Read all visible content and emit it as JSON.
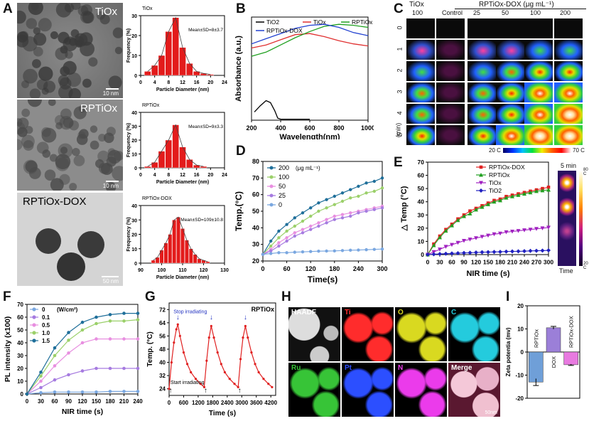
{
  "panels": {
    "A": "A",
    "B": "B",
    "C": "C",
    "D": "D",
    "E": "E",
    "F": "F",
    "G": "G",
    "H": "H",
    "I": "I"
  },
  "tem": [
    {
      "label": "TiOx",
      "scale": "10 nm"
    },
    {
      "label": "RPTiOx",
      "scale": "10 nm"
    },
    {
      "label": "RPTiOx-DOX",
      "scale": "50 nm"
    }
  ],
  "chart_data": [
    {
      "id": "A1",
      "type": "bar",
      "title": "TiOx",
      "annotation": "Mean±SD=8±3.7",
      "xlabel": "Particle Diameter (nm)",
      "ylabel": "Frequency (%)",
      "xticks": [
        "0",
        "4",
        "8",
        "12",
        "16",
        "20",
        "24"
      ],
      "xlim": [
        0,
        24
      ],
      "yticks": [
        "0",
        "10",
        "20",
        "30"
      ],
      "ylim": [
        0,
        30
      ],
      "x": [
        2,
        4,
        6,
        8,
        10,
        12,
        14,
        16,
        18,
        20
      ],
      "values": [
        2,
        5,
        10,
        22,
        29,
        14,
        6,
        2,
        1,
        0.5
      ]
    },
    {
      "id": "A2",
      "type": "bar",
      "title": "RPTiOx",
      "annotation": "Mean±SD=9±3.3",
      "xlabel": "Particle Diameter (nm)",
      "ylabel": "Frequency (%)",
      "xticks": [
        "0",
        "4",
        "8",
        "12",
        "16",
        "20",
        "24"
      ],
      "xlim": [
        0,
        24
      ],
      "yticks": [
        "0",
        "10",
        "20",
        "30",
        "40"
      ],
      "ylim": [
        0,
        40
      ],
      "x": [
        2,
        4,
        6,
        8,
        10,
        12,
        14,
        16,
        18
      ],
      "values": [
        1,
        4,
        12,
        20,
        31,
        15,
        6,
        2,
        1
      ]
    },
    {
      "id": "A3",
      "type": "bar",
      "title": "RPTiOx-DOX",
      "annotation": "Mean±SD=109±10.8",
      "xlabel": "Particle Diameter (nm)",
      "ylabel": "Frequency (%)",
      "xticks": [
        "90",
        "100",
        "110",
        "120",
        "130"
      ],
      "xlim": [
        90,
        130
      ],
      "yticks": [
        "0",
        "10",
        "20",
        "30",
        "40"
      ],
      "ylim": [
        0,
        40
      ],
      "x": [
        96,
        98,
        100,
        102,
        104,
        106,
        108,
        110,
        112,
        114,
        116,
        118,
        120,
        122
      ],
      "values": [
        2,
        4,
        9,
        14,
        20,
        30,
        32,
        24,
        16,
        10,
        6,
        3,
        2,
        1
      ]
    },
    {
      "id": "B",
      "type": "line",
      "xlabel": "Wavelength(nm)",
      "ylabel": "Absorbance (a.u.)",
      "xticks": [
        "200",
        "400",
        "600",
        "800",
        "1000"
      ],
      "xlim": [
        200,
        1000
      ],
      "legend_position": "top",
      "series": [
        {
          "name": "TiO2",
          "color": "#000000",
          "x": [
            220,
            260,
            300,
            330,
            360,
            380,
            400,
            450,
            520,
            600
          ],
          "y": [
            0.08,
            0.14,
            0.19,
            0.17,
            0.09,
            0.02,
            0.01,
            0.01,
            0.01,
            0.01
          ]
        },
        {
          "name": "TiOx",
          "color": "#e03030",
          "x": [
            200,
            300,
            400,
            500,
            600,
            700,
            800,
            900,
            1000
          ],
          "y": [
            0.7,
            0.73,
            0.78,
            0.83,
            0.84,
            0.81,
            0.77,
            0.74,
            0.72
          ]
        },
        {
          "name": "RPTiOx",
          "color": "#20a020",
          "x": [
            200,
            300,
            400,
            500,
            600,
            700,
            800,
            900,
            1000
          ],
          "y": [
            0.62,
            0.66,
            0.73,
            0.8,
            0.86,
            0.91,
            0.93,
            0.92,
            0.9
          ]
        },
        {
          "name": "RPTiOx-DOX",
          "color": "#2040d0",
          "x": [
            200,
            300,
            400,
            500,
            600,
            700,
            800,
            900,
            1000
          ],
          "y": [
            0.74,
            0.79,
            0.84,
            0.89,
            0.92,
            0.93,
            0.9,
            0.85,
            0.82
          ]
        }
      ]
    },
    {
      "id": "D",
      "type": "line",
      "xlabel": "Time(s)",
      "ylabel": "Temp.(°C)",
      "xticks": [
        "0",
        "60",
        "120",
        "180",
        "240",
        "300"
      ],
      "xlim": [
        0,
        300
      ],
      "yticks": [
        "20",
        "30",
        "40",
        "50",
        "60",
        "70",
        "80"
      ],
      "ylim": [
        20,
        80
      ],
      "legend_title": "(μg mL⁻¹)",
      "x": [
        0,
        20,
        40,
        60,
        80,
        100,
        120,
        140,
        160,
        180,
        200,
        220,
        240,
        260,
        280,
        300
      ],
      "series": [
        {
          "name": "200",
          "color": "#1f6f9a",
          "y": [
            24,
            32,
            38,
            42,
            46,
            49,
            52,
            55,
            57,
            59,
            61,
            63,
            65,
            67,
            68,
            70
          ]
        },
        {
          "name": "100",
          "color": "#9bd06a",
          "y": [
            24,
            29,
            34,
            38,
            41,
            44,
            47,
            50,
            52,
            54,
            56,
            58,
            59,
            61,
            62,
            64
          ]
        },
        {
          "name": "50",
          "color": "#e88fe0",
          "y": [
            24,
            27,
            31,
            34,
            37,
            39,
            41,
            43,
            45,
            47,
            48,
            49,
            50,
            51,
            52,
            53
          ]
        },
        {
          "name": "25",
          "color": "#a67be0",
          "y": [
            24,
            26,
            29,
            32,
            35,
            37,
            39,
            41,
            43,
            45,
            46,
            47,
            49,
            50,
            51,
            52
          ]
        },
        {
          "name": "0",
          "color": "#7aa7e0",
          "y": [
            24,
            24.5,
            25,
            25,
            25.3,
            25.5,
            25.7,
            25.9,
            26,
            26.1,
            26.3,
            26.5,
            26.6,
            26.8,
            27,
            27.2
          ]
        }
      ]
    },
    {
      "id": "E",
      "type": "line",
      "xlabel": "NIR time (s)",
      "ylabel": "△ Temp (°C)",
      "xticks": [
        "0",
        "30",
        "60",
        "90",
        "120",
        "150",
        "180",
        "210",
        "240",
        "270",
        "300"
      ],
      "xlim": [
        0,
        300
      ],
      "yticks": [
        "0",
        "10",
        "20",
        "30",
        "40",
        "50",
        "60",
        "70"
      ],
      "ylim": [
        0,
        70
      ],
      "x": [
        0,
        15,
        30,
        45,
        60,
        75,
        90,
        105,
        120,
        135,
        150,
        165,
        180,
        195,
        210,
        225,
        240,
        255,
        270,
        285,
        300
      ],
      "series": [
        {
          "name": "RPTiOx-DOX",
          "color": "#e02020",
          "marker": "square",
          "y": [
            0,
            8,
            14,
            19,
            23,
            27,
            30,
            33,
            35,
            37,
            39,
            41,
            42,
            44,
            45,
            46,
            47,
            48,
            49,
            50,
            51
          ]
        },
        {
          "name": "RPTiOx",
          "color": "#20a020",
          "marker": "triangle-up",
          "y": [
            0,
            7,
            13,
            18,
            22,
            26,
            29,
            31,
            34,
            36,
            38,
            40,
            41,
            43,
            44,
            45,
            46,
            47,
            48,
            48.5,
            49
          ]
        },
        {
          "name": "TiOx",
          "color": "#a020c0",
          "marker": "triangle-down",
          "y": [
            0,
            2,
            4,
            6,
            7.5,
            9,
            10.5,
            11.5,
            12.5,
            13.5,
            14.5,
            15.5,
            16,
            17,
            17.5,
            18,
            18.5,
            19,
            19.5,
            20,
            20.5
          ]
        },
        {
          "name": "TiO2",
          "color": "#2020c0",
          "marker": "diamond",
          "y": [
            0,
            0.3,
            0.5,
            0.7,
            0.9,
            1.1,
            1.3,
            1.4,
            1.6,
            1.8,
            1.9,
            2.0,
            2.1,
            2.3,
            2.4,
            2.5,
            2.6,
            2.8,
            2.9,
            3.0,
            3.2
          ]
        }
      ],
      "inset": {
        "title": "5 min",
        "scale_max": "80 C",
        "scale_min": "20 C",
        "bottom": "Time"
      }
    },
    {
      "id": "F",
      "type": "line",
      "xlabel": "NIR time (s)",
      "ylabel": "PL intensity (x100)",
      "xticks": [
        "0",
        "30",
        "60",
        "90",
        "120",
        "150",
        "180",
        "210",
        "240"
      ],
      "xlim": [
        0,
        240
      ],
      "yticks": [
        "0",
        "10",
        "20",
        "30",
        "40",
        "50",
        "60",
        "70"
      ],
      "ylim": [
        0,
        70
      ],
      "legend_title": "(W/cm²)",
      "x": [
        0,
        30,
        60,
        90,
        120,
        150,
        180,
        210,
        240
      ],
      "series": [
        {
          "name": "0",
          "color": "#7aa7e0",
          "y": [
            0,
            1,
            1.5,
            1.5,
            1.5,
            1.5,
            2,
            2,
            2
          ]
        },
        {
          "name": "0.1",
          "color": "#a67be0",
          "y": [
            0,
            5,
            11,
            15,
            18,
            20,
            20,
            20,
            20
          ]
        },
        {
          "name": "0.5",
          "color": "#e88fe0",
          "y": [
            0,
            10,
            22,
            32,
            40,
            43,
            43,
            43,
            43
          ]
        },
        {
          "name": "1.0",
          "color": "#9bd06a",
          "y": [
            0,
            14,
            30,
            42,
            50,
            55,
            57,
            57,
            58
          ]
        },
        {
          "name": "1.5",
          "color": "#1f6f9a",
          "y": [
            0,
            17,
            36,
            48,
            56,
            60,
            62,
            63,
            63
          ]
        }
      ]
    },
    {
      "id": "G",
      "type": "line",
      "title": "RPTiOx",
      "xlabel": "Time (s)",
      "ylabel": "Temp. (°C)",
      "xticks": [
        "0",
        "600",
        "1200",
        "1800",
        "2400",
        "3000",
        "3600",
        "4200"
      ],
      "xlim": [
        0,
        4400
      ],
      "yticks": [
        "24",
        "32",
        "40",
        "48",
        "56",
        "64",
        "72"
      ],
      "ylim": [
        20,
        76
      ],
      "annotations": [
        "Stop irradiating",
        "Start irradiating"
      ],
      "series": [
        {
          "name": "",
          "color": "#e02020",
          "x": [
            0,
            100,
            200,
            300,
            360,
            450,
            600,
            750,
            900,
            1100,
            1300,
            1450,
            1550,
            1650,
            1740,
            1850,
            2000,
            2150,
            2300,
            2500,
            2700,
            2850,
            2950,
            3050,
            3150,
            3250,
            3400,
            3550,
            3700,
            3900,
            4100,
            4250
          ],
          "y": [
            24,
            40,
            52,
            60,
            63,
            56,
            46,
            39,
            34,
            30,
            27,
            25,
            41,
            55,
            62,
            55,
            46,
            39,
            34,
            30,
            27,
            25,
            42,
            55,
            62,
            55,
            46,
            39,
            34,
            30,
            27,
            25
          ]
        }
      ]
    },
    {
      "id": "I",
      "type": "bar",
      "ylabel": "Zeta potentia (mv)",
      "yticks": [
        "-20",
        "-10",
        "0",
        "10",
        "20"
      ],
      "ylim": [
        -20,
        20
      ],
      "categories": [
        "RPTiOx",
        "DOX",
        "RPTiOx-DOX"
      ],
      "values": [
        -13,
        10.5,
        -5.5
      ],
      "errors": [
        1.5,
        0.6,
        0.3
      ],
      "colors": [
        "#6f9fd8",
        "#9b7fd8",
        "#e87ae0"
      ]
    }
  ],
  "panelC": {
    "header_left": "TiOx",
    "header_right": "RPTiOx-DOX  (μg mL⁻¹)",
    "columns": [
      "100",
      "Control",
      "25",
      "50",
      "100",
      "200"
    ],
    "rows": [
      "0",
      "1",
      "2",
      "3",
      "4",
      "5"
    ],
    "row_unit": "(min)",
    "scale_min": "20 C",
    "scale_max": "70 C"
  },
  "panelH": {
    "tiles": [
      "HAADF",
      "Ti",
      "O",
      "C",
      "Ru",
      "Pt",
      "N",
      "Merge"
    ],
    "colors": [
      "#ffffff",
      "#ff3030",
      "#d8d830",
      "#30c8d8",
      "#40c040",
      "#3050ff",
      "#e040e0",
      "#ffffff"
    ],
    "scale": "50nm"
  }
}
